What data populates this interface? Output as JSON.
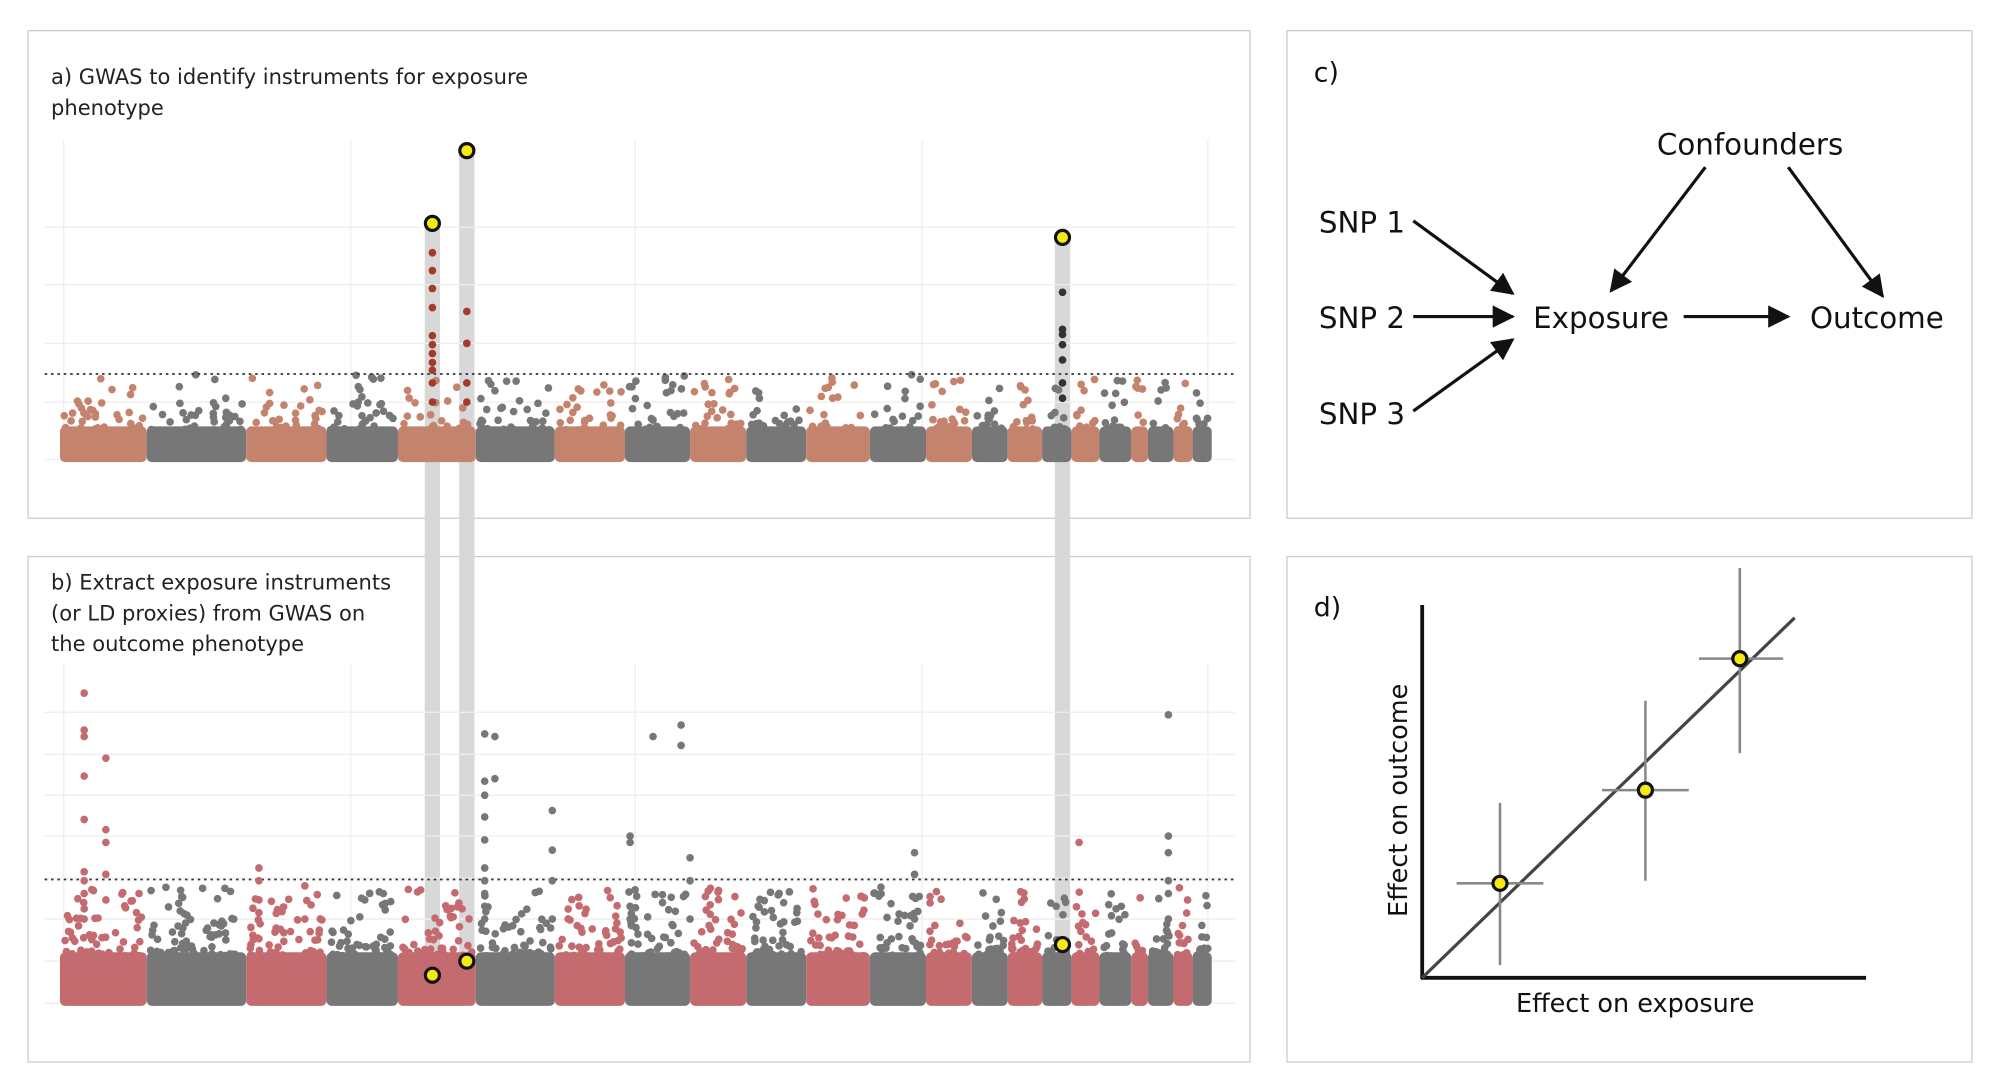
{
  "panel_a": {
    "caption": [
      "a) GWAS to identify instruments for exposure",
      "phenotype"
    ]
  },
  "panel_b": {
    "caption": [
      "b) Extract exposure instruments",
      "(or LD proxies) from GWAS on",
      "the outcome phenotype"
    ]
  },
  "panel_c": {
    "label": "c)",
    "nodes": [
      {
        "label": "SNP 1"
      },
      {
        "label": "SNP 2"
      },
      {
        "label": "SNP 3"
      },
      {
        "label": "Exposure"
      },
      {
        "label": "Outcome"
      },
      {
        "label": "Confounders"
      }
    ]
  },
  "panel_d": {
    "label": "d)",
    "x_axis_label": "Effect on exposure",
    "y_axis_label": "Effect on outcome"
  }
}
